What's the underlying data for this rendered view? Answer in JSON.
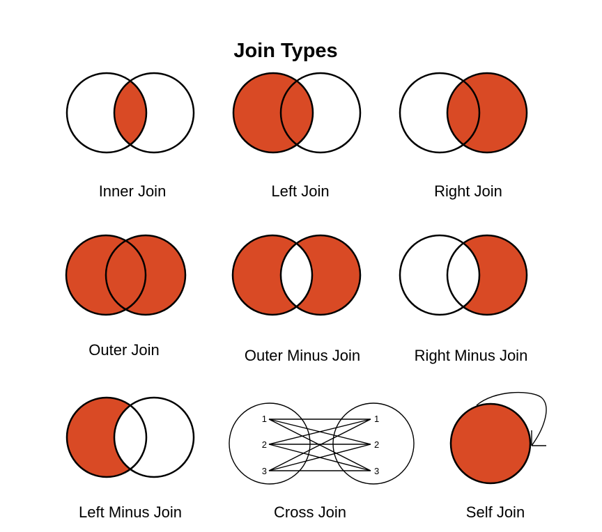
{
  "title": "Join Types",
  "colors": {
    "fill": "#d94a25",
    "stroke": "#000000",
    "background": "#ffffff"
  },
  "joins": [
    {
      "label": "Inner Join"
    },
    {
      "label": "Left Join"
    },
    {
      "label": "Right Join"
    },
    {
      "label": "Outer Join"
    },
    {
      "label": "Outer Minus Join"
    },
    {
      "label": "Right Minus Join"
    },
    {
      "label": "Left Minus Join"
    },
    {
      "label": "Cross Join",
      "left_rows": [
        "1",
        "2",
        "3"
      ],
      "right_rows": [
        "1",
        "2",
        "3"
      ]
    },
    {
      "label": "Self Join"
    }
  ]
}
